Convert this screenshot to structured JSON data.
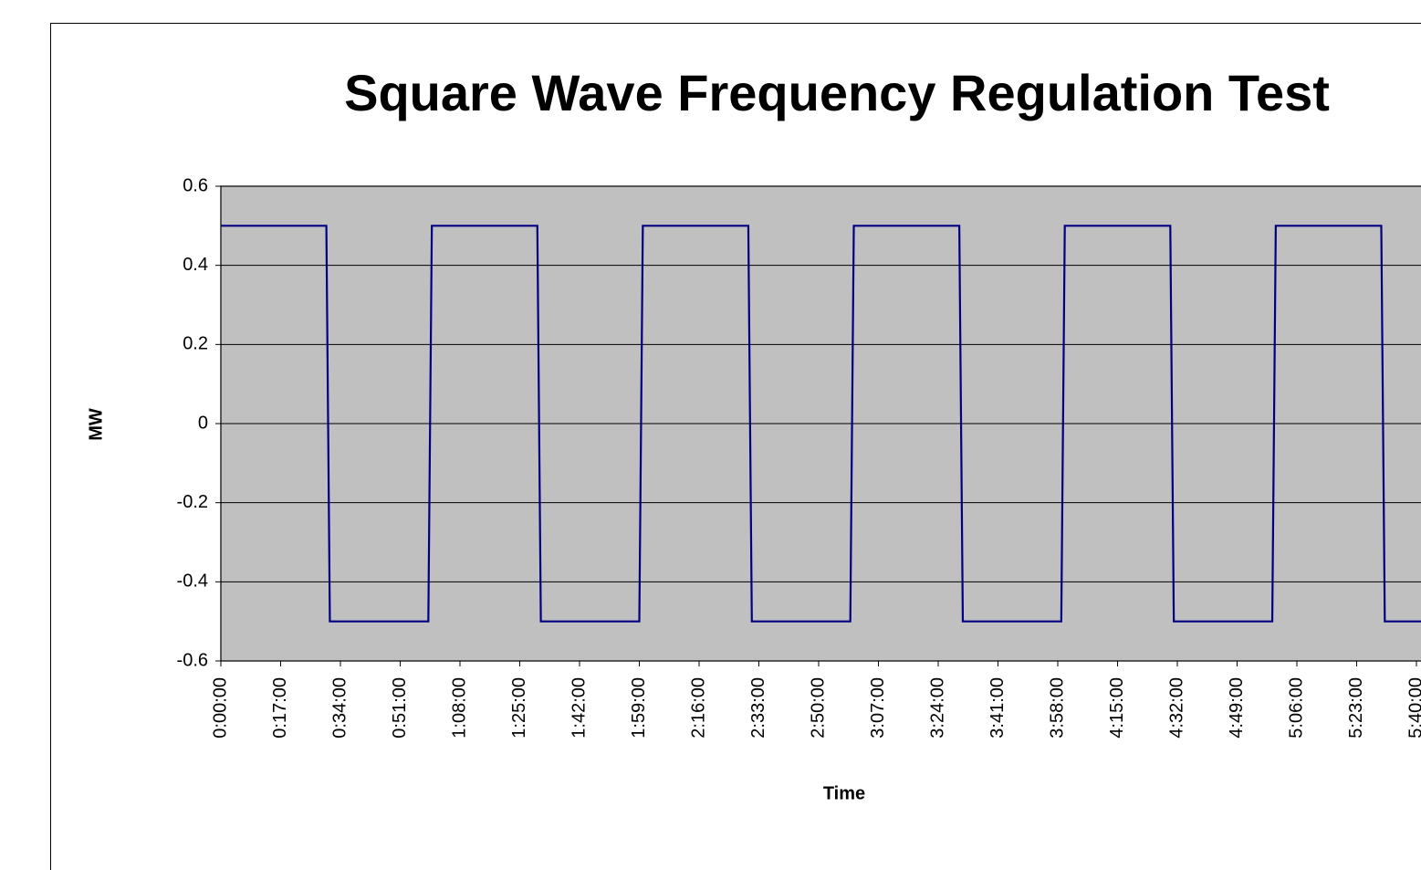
{
  "chart_data": {
    "type": "line",
    "title": "Square Wave Frequency Regulation Test",
    "x_label": "Time",
    "y_label": "MW",
    "series": [
      {
        "name": "MW",
        "color": "#000080",
        "x": [
          0,
          30,
          31,
          59,
          60,
          90,
          91,
          119,
          120,
          150,
          151,
          179,
          180,
          210,
          211,
          239,
          240,
          270,
          271,
          299,
          300,
          330,
          331,
          359
        ],
        "values": [
          0.5,
          0.5,
          -0.5,
          -0.5,
          0.5,
          0.5,
          -0.5,
          -0.5,
          0.5,
          0.5,
          -0.5,
          -0.5,
          0.5,
          0.5,
          -0.5,
          -0.5,
          0.5,
          0.5,
          -0.5,
          -0.5,
          0.5,
          0.5,
          -0.5,
          -0.5
        ]
      }
    ],
    "xlim": [
      0,
      340
    ],
    "xticks": [
      {
        "value": 0,
        "label": "0:00:00"
      },
      {
        "value": 17,
        "label": "0:17:00"
      },
      {
        "value": 34,
        "label": "0:34:00"
      },
      {
        "value": 51,
        "label": "0:51:00"
      },
      {
        "value": 68,
        "label": "1:08:00"
      },
      {
        "value": 85,
        "label": "1:25:00"
      },
      {
        "value": 102,
        "label": "1:42:00"
      },
      {
        "value": 119,
        "label": "1:59:00"
      },
      {
        "value": 136,
        "label": "2:16:00"
      },
      {
        "value": 153,
        "label": "2:33:00"
      },
      {
        "value": 170,
        "label": "2:50:00"
      },
      {
        "value": 187,
        "label": "3:07:00"
      },
      {
        "value": 204,
        "label": "3:24:00"
      },
      {
        "value": 221,
        "label": "3:41:00"
      },
      {
        "value": 238,
        "label": "3:58:00"
      },
      {
        "value": 255,
        "label": "4:15:00"
      },
      {
        "value": 272,
        "label": "4:32:00"
      },
      {
        "value": 289,
        "label": "4:49:00"
      },
      {
        "value": 306,
        "label": "5:06:00"
      },
      {
        "value": 323,
        "label": "5:23:00"
      },
      {
        "value": 340,
        "label": "5:40:00"
      }
    ],
    "ylim": [
      -0.6,
      0.6
    ],
    "yticks": [
      0.6,
      0.4,
      0.2,
      0,
      -0.2,
      -0.4,
      -0.6
    ],
    "grid": true,
    "plot_background": "#c0c0c0"
  }
}
